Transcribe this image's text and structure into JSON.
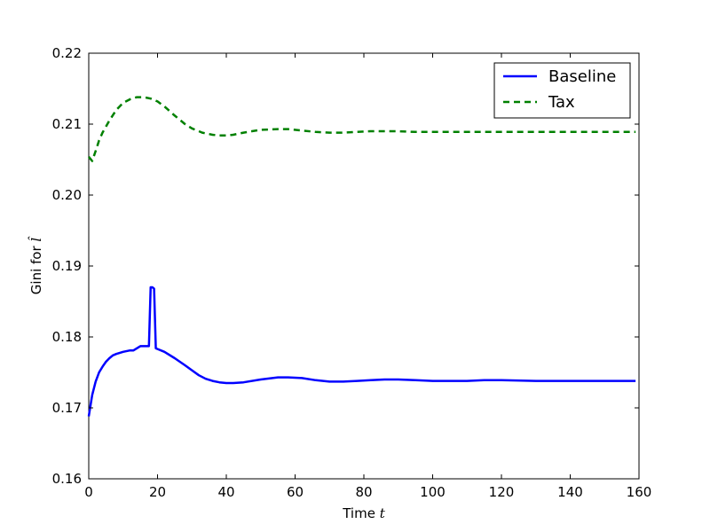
{
  "chart_data": {
    "type": "line",
    "title": "",
    "xlabel": "Time t",
    "ylabel": "Gini for l̂",
    "xlim": [
      0,
      160
    ],
    "ylim": [
      0.16,
      0.22
    ],
    "xticks": [
      0,
      20,
      40,
      60,
      80,
      100,
      120,
      140,
      160
    ],
    "yticks": [
      0.16,
      0.17,
      0.18,
      0.19,
      0.2,
      0.21,
      0.22
    ],
    "xtick_labels": [
      "0",
      "20",
      "40",
      "60",
      "80",
      "100",
      "120",
      "140",
      "160"
    ],
    "ytick_labels": [
      "0.16",
      "0.17",
      "0.18",
      "0.19",
      "0.20",
      "0.21",
      "0.22"
    ],
    "grid": false,
    "legend_position": "top-right",
    "series": [
      {
        "name": "Baseline",
        "color": "#0000ff",
        "style": "solid",
        "x": [
          0,
          1,
          2,
          3,
          4,
          5,
          6,
          7,
          8,
          10,
          12,
          13,
          14,
          15,
          16,
          17,
          17.5,
          18,
          18.5,
          19,
          19.5,
          20,
          22,
          25,
          28,
          30,
          32,
          34,
          36,
          38,
          40,
          42,
          45,
          50,
          55,
          58,
          62,
          66,
          70,
          74,
          78,
          82,
          86,
          90,
          95,
          100,
          105,
          110,
          115,
          120,
          130,
          140,
          150,
          159
        ],
        "y": [
          0.1688,
          0.1718,
          0.1737,
          0.175,
          0.1758,
          0.1765,
          0.177,
          0.1774,
          0.1776,
          0.1779,
          0.1781,
          0.1781,
          0.1784,
          0.1787,
          0.1787,
          0.1787,
          0.1787,
          0.187,
          0.187,
          0.1868,
          0.1784,
          0.1783,
          0.1779,
          0.177,
          0.176,
          0.1753,
          0.1746,
          0.1741,
          0.1738,
          0.1736,
          0.1735,
          0.1735,
          0.1736,
          0.174,
          0.1743,
          0.1743,
          0.1742,
          0.1739,
          0.1737,
          0.1737,
          0.1738,
          0.1739,
          0.174,
          0.174,
          0.1739,
          0.1738,
          0.1738,
          0.1738,
          0.1739,
          0.1739,
          0.1738,
          0.1738,
          0.1738,
          0.1738
        ]
      },
      {
        "name": "Tax",
        "color": "#008000",
        "style": "dashed",
        "x": [
          0,
          1,
          2,
          3,
          4,
          6,
          8,
          10,
          12,
          14,
          16,
          18,
          20,
          22,
          25,
          28,
          30,
          33,
          36,
          38,
          40,
          42,
          45,
          50,
          55,
          58,
          62,
          66,
          70,
          74,
          78,
          82,
          86,
          90,
          95,
          100,
          105,
          110,
          115,
          120,
          130,
          140,
          150,
          159
        ],
        "y": [
          0.2054,
          0.2048,
          0.2062,
          0.2077,
          0.2088,
          0.2105,
          0.212,
          0.213,
          0.2135,
          0.2138,
          0.2138,
          0.2136,
          0.2132,
          0.2125,
          0.2112,
          0.21,
          0.2094,
          0.2088,
          0.2085,
          0.2084,
          0.2084,
          0.2085,
          0.2088,
          0.2092,
          0.2093,
          0.2093,
          0.2091,
          0.2089,
          0.2088,
          0.2088,
          0.2089,
          0.209,
          0.209,
          0.209,
          0.2089,
          0.2089,
          0.2089,
          0.2089,
          0.2089,
          0.2089,
          0.2089,
          0.2089,
          0.2089,
          0.2089
        ]
      }
    ]
  }
}
